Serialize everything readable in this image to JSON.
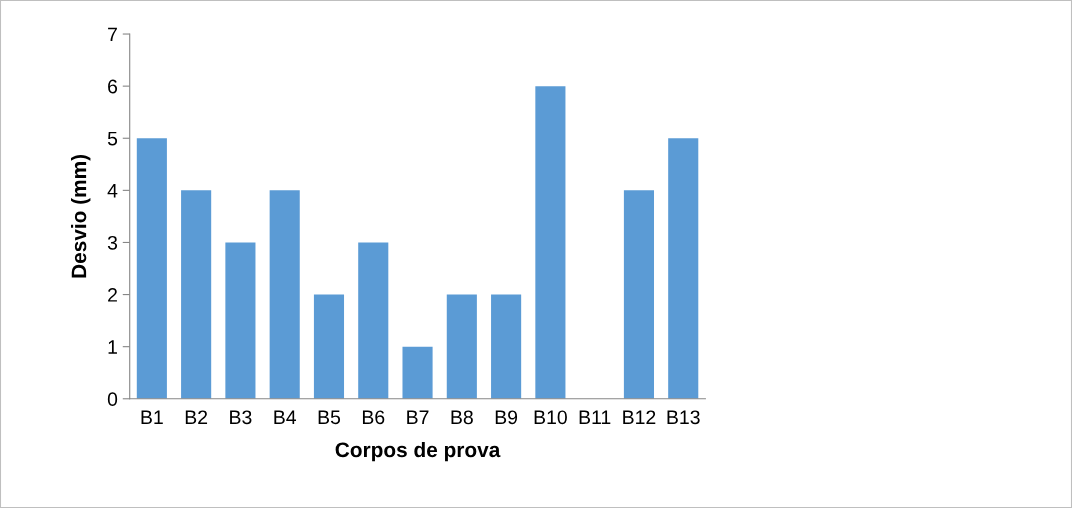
{
  "chart_data": {
    "type": "bar",
    "xlabel": "Corpos de prova",
    "ylabel": "Desvio (mm)",
    "categories": [
      "B1",
      "B2",
      "B3",
      "B4",
      "B5",
      "B6",
      "B7",
      "B8",
      "B9",
      "B10",
      "B11",
      "B12",
      "B13"
    ],
    "values": [
      5,
      4,
      3,
      4,
      2,
      3,
      1,
      2,
      2,
      6,
      0,
      4,
      5
    ],
    "color": "#5b9bd5",
    "ylim": [
      0,
      7
    ],
    "yticks": [
      0,
      1,
      2,
      3,
      4,
      5,
      6,
      7
    ],
    "grid": false,
    "legend": false
  }
}
